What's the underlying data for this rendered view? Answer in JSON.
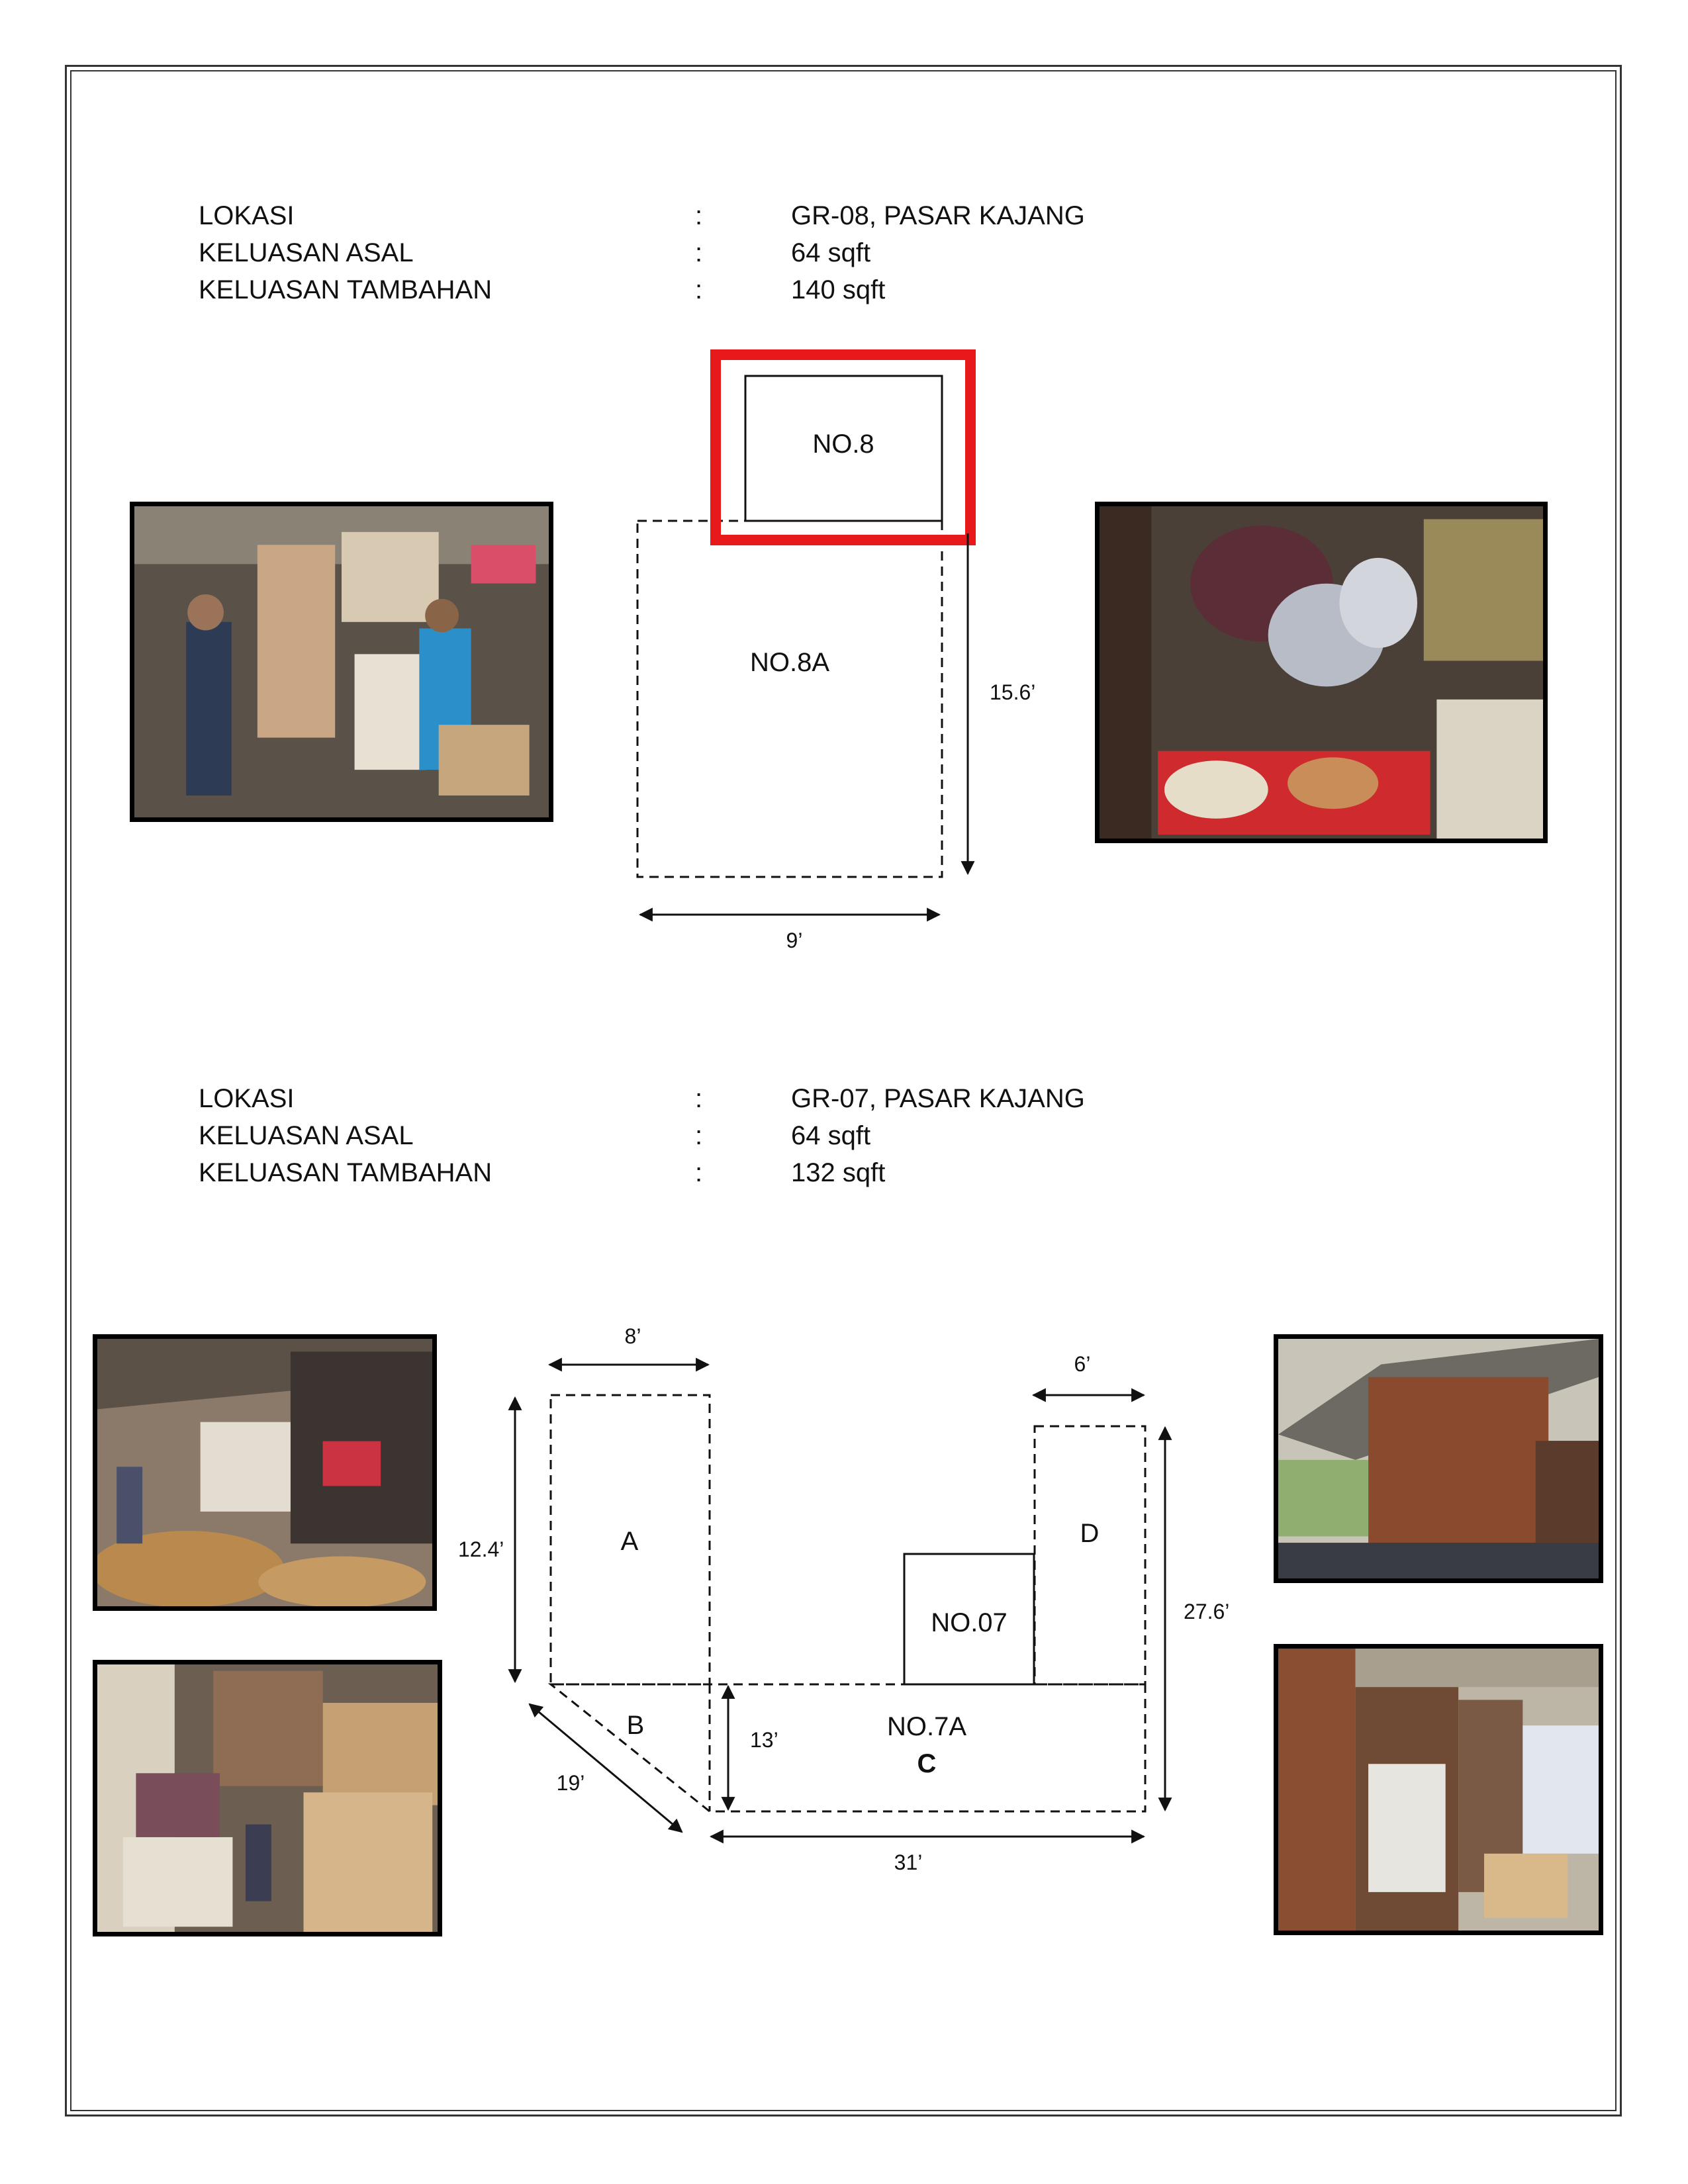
{
  "sections": [
    {
      "rows": [
        {
          "label": "LOKASI",
          "sep": ":",
          "value": "GR-08, PASAR KAJANG"
        },
        {
          "label": "KELUASAN ASAL",
          "sep": ":",
          "value": "64 sqft"
        },
        {
          "label": "KELUASAN TAMBAHAN",
          "sep": ":",
          "value": "140 sqft"
        }
      ],
      "diagram": {
        "existing": "NO.8",
        "extension": "NO.8A",
        "height": "15.6’",
        "width": "9’"
      }
    },
    {
      "rows": [
        {
          "label": "LOKASI",
          "sep": ":",
          "value": "GR-07, PASAR KAJANG"
        },
        {
          "label": "KELUASAN ASAL",
          "sep": ":",
          "value": "64 sqft"
        },
        {
          "label": "KELUASAN TAMBAHAN",
          "sep": ":",
          "value": "132 sqft"
        }
      ],
      "diagram": {
        "area_a": "A",
        "area_b": "B",
        "area_c": "C",
        "area_d": "D",
        "existing": "NO.07",
        "extension": "NO.7A",
        "dim_a_width": "8’",
        "dim_a_height": "12.4’",
        "dim_d_width": "6’",
        "dim_total_height": "27.6’",
        "dim_c_height": "13’",
        "dim_b_diagonal": "19’",
        "dim_c_width": "31’"
      }
    }
  ],
  "colors": {
    "highlight": "#e8191b",
    "line": "#111111"
  }
}
